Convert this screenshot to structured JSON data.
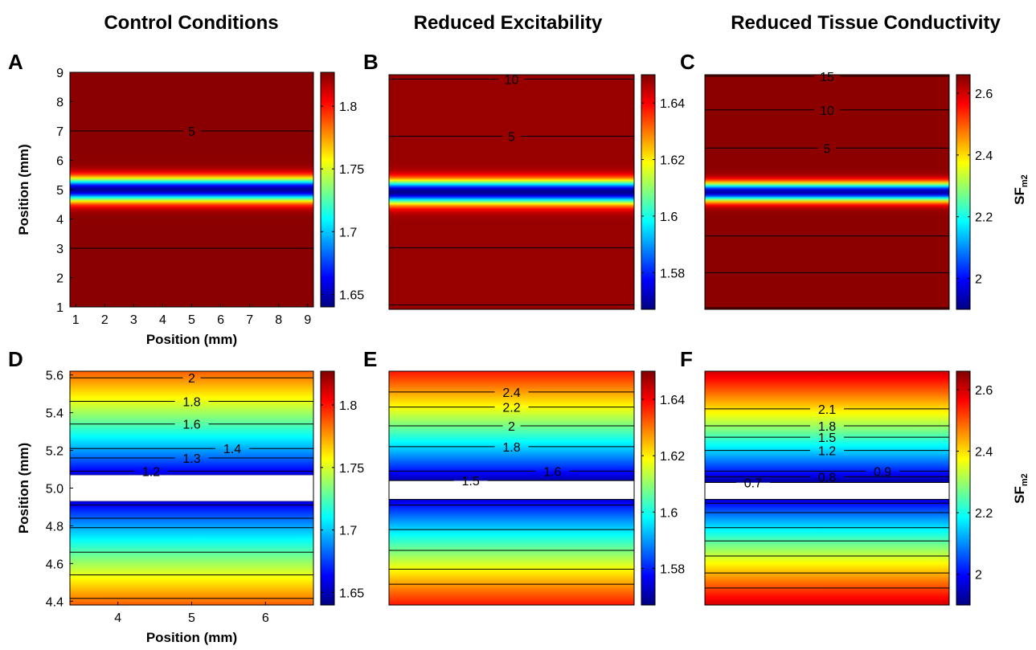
{
  "column_titles": [
    "Control Conditions",
    "Reduced Excitability",
    "Reduced Tissue Conductivity"
  ],
  "panel_letters": [
    "A",
    "B",
    "C",
    "D",
    "E",
    "F"
  ],
  "colorbar_label": {
    "main": "SF",
    "sub": "m2"
  },
  "colors": {
    "colormap": "jet",
    "contour_line": "#000000",
    "clipped": "#ffffff"
  },
  "chart_data": [
    {
      "panel": "A",
      "type": "heatmap",
      "title": "Control Conditions",
      "xlabel": "Position (mm)",
      "ylabel": "Position (mm)",
      "xlim": [
        0.8,
        9.2
      ],
      "ylim": [
        1,
        9
      ],
      "xticks": [
        "1",
        "2",
        "3",
        "4",
        "5",
        "6",
        "7",
        "8",
        "9"
      ],
      "yticks": [
        "1",
        "2",
        "3",
        "4",
        "5",
        "6",
        "7",
        "8",
        "9"
      ],
      "center": 5.0,
      "min_value": 1.645,
      "max_value": 1.825,
      "colorbar": {
        "range": [
          1.64,
          1.827
        ],
        "ticks": [
          1.65,
          1.7,
          1.75,
          1.8
        ],
        "tick_labels": [
          "1.65",
          "1.7",
          "1.75",
          "1.8"
        ]
      },
      "contours": [
        {
          "level": "5",
          "y": 7.0,
          "labeled": true,
          "label_x": 5.0
        },
        {
          "level": "5",
          "y": 3.0,
          "labeled": false
        }
      ]
    },
    {
      "panel": "B",
      "type": "heatmap",
      "title": "Reduced Excitability",
      "xlabel": "",
      "ylabel": "",
      "xlim": [
        0.8,
        9.2
      ],
      "ylim": [
        1,
        9
      ],
      "center": 5.0,
      "min_value": 1.568,
      "max_value": 1.648,
      "colorbar": {
        "range": [
          1.567,
          1.65
        ],
        "ticks": [
          1.58,
          1.6,
          1.62,
          1.64
        ],
        "tick_labels": [
          "1.58",
          "1.6",
          "1.62",
          "1.64"
        ]
      },
      "contours": [
        {
          "level": "10",
          "y": 8.85,
          "labeled": true,
          "label_x": 5.0
        },
        {
          "level": "5",
          "y": 6.9,
          "labeled": true,
          "label_x": 5.0
        },
        {
          "level": "5",
          "y": 3.1,
          "labeled": false
        },
        {
          "level": "10",
          "y": 1.15,
          "labeled": false
        }
      ]
    },
    {
      "panel": "C",
      "type": "heatmap",
      "title": "Reduced Tissue Conductivity",
      "xlabel": "",
      "ylabel": "",
      "xlim": [
        0.8,
        9.2
      ],
      "ylim": [
        1,
        9
      ],
      "center": 5.0,
      "min_value": 1.93,
      "max_value": 2.65,
      "colorbar": {
        "range": [
          1.9,
          2.66
        ],
        "ticks": [
          2,
          2.2,
          2.4,
          2.6
        ],
        "tick_labels": [
          "2",
          "2.2",
          "2.4",
          "2.6"
        ]
      },
      "contours": [
        {
          "level": "15",
          "y": 8.95,
          "labeled": true,
          "label_x": 5.0
        },
        {
          "level": "10",
          "y": 7.8,
          "labeled": true,
          "label_x": 5.0
        },
        {
          "level": "5",
          "y": 6.5,
          "labeled": true,
          "label_x": 5.0
        },
        {
          "level": "5",
          "y": 3.5,
          "labeled": false
        },
        {
          "level": "10",
          "y": 2.25,
          "labeled": false
        },
        {
          "level": "15",
          "y": 1.05,
          "labeled": false
        }
      ]
    },
    {
      "panel": "D",
      "type": "heatmap",
      "title": "",
      "xlabel": "Position (mm)",
      "ylabel": "Position (mm)",
      "xlim": [
        3.35,
        6.65
      ],
      "ylim": [
        4.38,
        5.62
      ],
      "xticks": [
        "4",
        "5",
        "6"
      ],
      "yticks": [
        "4.4",
        "4.6",
        "4.8",
        "5.0",
        "5.2",
        "5.4",
        "5.6"
      ],
      "center": 5.0,
      "gap": [
        4.93,
        5.07
      ],
      "min_value": 1.645,
      "max_value": 1.795,
      "colorbar": {
        "range": [
          1.64,
          1.827
        ],
        "ticks": [
          1.65,
          1.7,
          1.75,
          1.8
        ],
        "tick_labels": [
          "1.65",
          "1.7",
          "1.75",
          "1.8"
        ]
      },
      "contours": [
        {
          "level": "2",
          "y": 5.585,
          "labeled": true,
          "label_x": 5.0
        },
        {
          "level": "1.8",
          "y": 5.46,
          "labeled": true,
          "label_x": 5.0
        },
        {
          "level": "1.6",
          "y": 5.34,
          "labeled": true,
          "label_x": 5.0
        },
        {
          "level": "1.4",
          "y": 5.21,
          "labeled": true,
          "label_x": 5.55
        },
        {
          "level": "1.3",
          "y": 5.16,
          "labeled": true,
          "label_x": 5.0
        },
        {
          "level": "1.2",
          "y": 5.09,
          "labeled": true,
          "label_x": 4.45
        },
        {
          "level": "1.2",
          "y": 4.91,
          "labeled": false
        },
        {
          "level": "1.3",
          "y": 4.84,
          "labeled": false
        },
        {
          "level": "1.4",
          "y": 4.79,
          "labeled": false
        },
        {
          "level": "1.6",
          "y": 4.66,
          "labeled": false
        },
        {
          "level": "1.8",
          "y": 4.54,
          "labeled": false
        },
        {
          "level": "2",
          "y": 4.415,
          "labeled": false
        }
      ]
    },
    {
      "panel": "E",
      "type": "heatmap",
      "title": "",
      "xlabel": "",
      "ylabel": "",
      "xlim": [
        3.35,
        6.65
      ],
      "ylim": [
        4.38,
        5.62
      ],
      "center": 5.0,
      "gap": [
        4.94,
        5.04
      ],
      "min_value": 1.57,
      "max_value": 1.642,
      "colorbar": {
        "range": [
          1.567,
          1.65
        ],
        "ticks": [
          1.58,
          1.6,
          1.62,
          1.64
        ],
        "tick_labels": [
          "1.58",
          "1.6",
          "1.62",
          "1.64"
        ]
      },
      "contours": [
        {
          "level": "2.4",
          "y": 5.51,
          "labeled": true,
          "label_x": 5.0
        },
        {
          "level": "2.2",
          "y": 5.43,
          "labeled": true,
          "label_x": 5.0
        },
        {
          "level": "2",
          "y": 5.33,
          "labeled": true,
          "label_x": 5.0
        },
        {
          "level": "1.8",
          "y": 5.22,
          "labeled": true,
          "label_x": 5.0
        },
        {
          "level": "1.6",
          "y": 5.09,
          "labeled": true,
          "label_x": 5.55
        },
        {
          "level": "1.5",
          "y": 5.04,
          "labeled": true,
          "label_x": 4.45
        },
        {
          "level": "1.5",
          "y": 4.94,
          "labeled": false
        },
        {
          "level": "1.6",
          "y": 4.91,
          "labeled": false
        },
        {
          "level": "1.8",
          "y": 4.78,
          "labeled": false
        },
        {
          "level": "2",
          "y": 4.67,
          "labeled": false
        },
        {
          "level": "2.2",
          "y": 4.57,
          "labeled": false
        },
        {
          "level": "2.4",
          "y": 4.49,
          "labeled": false
        }
      ]
    },
    {
      "panel": "F",
      "type": "heatmap",
      "title": "",
      "xlabel": "",
      "ylabel": "",
      "xlim": [
        3.35,
        6.65
      ],
      "ylim": [
        4.38,
        5.62
      ],
      "center": 5.0,
      "gap": [
        4.94,
        5.03
      ],
      "min_value": 1.93,
      "max_value": 2.64,
      "colorbar": {
        "range": [
          1.9,
          2.66
        ],
        "ticks": [
          2,
          2.2,
          2.4,
          2.6
        ],
        "tick_labels": [
          "2",
          "2.2",
          "2.4",
          "2.6"
        ]
      },
      "contours": [
        {
          "level": "2.1",
          "y": 5.42,
          "labeled": true,
          "label_x": 5.0
        },
        {
          "level": "1.8",
          "y": 5.33,
          "labeled": true,
          "label_x": 5.0
        },
        {
          "level": "1.5",
          "y": 5.27,
          "labeled": true,
          "label_x": 5.0
        },
        {
          "level": "1.2",
          "y": 5.2,
          "labeled": true,
          "label_x": 5.0
        },
        {
          "level": "0.9",
          "y": 5.09,
          "labeled": true,
          "label_x": 5.75
        },
        {
          "level": "0.8",
          "y": 5.06,
          "labeled": true,
          "label_x": 5.0
        },
        {
          "level": "0.7",
          "y": 5.03,
          "labeled": true,
          "label_x": 4.0
        },
        {
          "level": "0.7",
          "y": 4.94,
          "labeled": false
        },
        {
          "level": "0.8",
          "y": 4.92,
          "labeled": false
        },
        {
          "level": "0.9",
          "y": 4.87,
          "labeled": false
        },
        {
          "level": "1.2",
          "y": 4.79,
          "labeled": false
        },
        {
          "level": "1.5",
          "y": 4.72,
          "labeled": false
        },
        {
          "level": "1.8",
          "y": 4.64,
          "labeled": false
        },
        {
          "level": "2.1",
          "y": 4.55,
          "labeled": false
        },
        {
          "level": "2.4",
          "y": 4.47,
          "labeled": false
        }
      ]
    }
  ]
}
